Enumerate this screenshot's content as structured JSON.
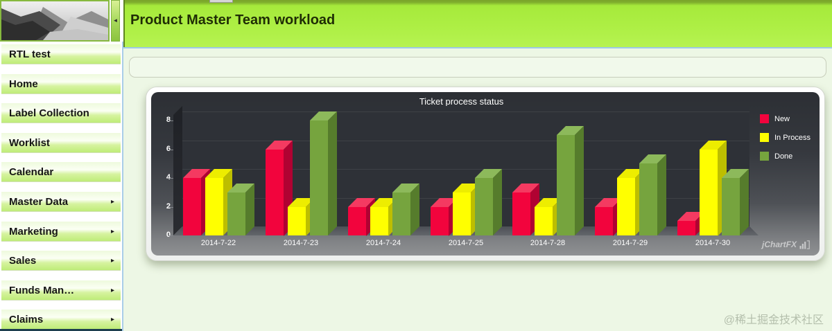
{
  "app": {
    "header_title": "Product Master Team workload",
    "page_watermark": "@稀土掘金技术社区"
  },
  "sidebar": {
    "collapse_arrow": "◄",
    "submenu_arrow": "▸",
    "items": [
      {
        "label": "RTL test",
        "has_submenu": false
      },
      {
        "label": "Home",
        "has_submenu": false
      },
      {
        "label": "Label Collection",
        "has_submenu": false
      },
      {
        "label": "Worklist",
        "has_submenu": false
      },
      {
        "label": "Calendar",
        "has_submenu": false
      },
      {
        "label": "Master Data",
        "has_submenu": true
      },
      {
        "label": "Marketing",
        "has_submenu": true
      },
      {
        "label": "Sales",
        "has_submenu": true
      },
      {
        "label": "Funds Man…",
        "has_submenu": true
      },
      {
        "label": "Claims",
        "has_submenu": true
      }
    ]
  },
  "chart_data": {
    "type": "bar",
    "projection": "3d",
    "title": "Ticket process status",
    "categories": [
      "2014-7-22",
      "2014-7-23",
      "2014-7-24",
      "2014-7-25",
      "2014-7-28",
      "2014-7-29",
      "2014-7-30"
    ],
    "series": [
      {
        "name": "New",
        "values": [
          4,
          6,
          2,
          2,
          3,
          2,
          1
        ],
        "color": "#f2043d",
        "color_top": "#f43a61",
        "color_side": "#b00232"
      },
      {
        "name": "In Process",
        "values": [
          4,
          2,
          2,
          3,
          2,
          4,
          6
        ],
        "color": "#ffff00",
        "color_top": "#eded00",
        "color_side": "#bdbe00"
      },
      {
        "name": "Done",
        "values": [
          3,
          8,
          3,
          4,
          7,
          5,
          4
        ],
        "color": "#76a43e",
        "color_top": "#8db95b",
        "color_side": "#567c2c"
      }
    ],
    "ylim": [
      0,
      8
    ],
    "yticks": [
      0,
      2,
      4,
      6,
      8
    ],
    "ylabel": "",
    "xlabel": "",
    "grid": true,
    "legend_position": "right",
    "background": "dark-gradient",
    "watermark": "jChartFX"
  }
}
